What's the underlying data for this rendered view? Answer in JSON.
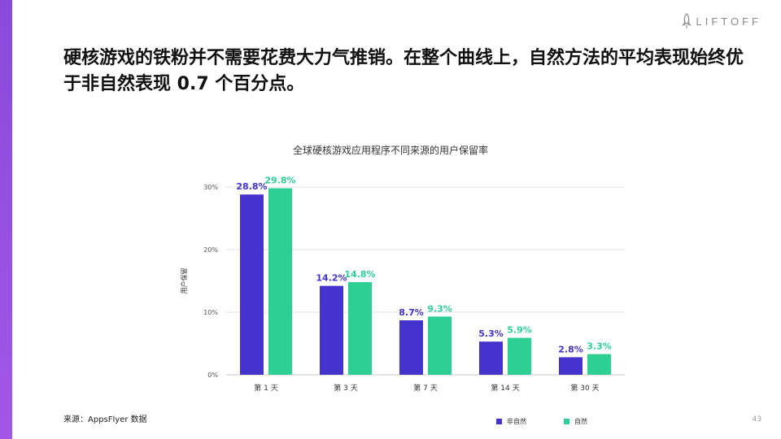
{
  "brand": {
    "logo_text": "LIFTOFF"
  },
  "headline": "硬核游戏的铁粉并不需要花费大力气推销。在整个曲线上，自然方法的平均表现始终优于非自然表现 0.7 个百分点。",
  "source": "来源：AppsFlyer 数据",
  "page_number": "43",
  "colors": {
    "non_organic": "#4433cc",
    "organic": "#2ecf95",
    "accent": "#9b51e0"
  },
  "chart_data": {
    "type": "bar",
    "title": "全球硬核游戏应用程序不同来源的用户保留率",
    "xlabel": "",
    "ylabel": "用户保留",
    "categories": [
      "第 1 天",
      "第 3 天",
      "第 7 天",
      "第 14 天",
      "第 30 天"
    ],
    "series": [
      {
        "name": "非自然",
        "values": [
          28.8,
          14.2,
          8.7,
          5.3,
          2.8
        ],
        "labels": [
          "28.8%",
          "14.2%",
          "8.7%",
          "5.3%",
          "2.8%"
        ]
      },
      {
        "name": "自然",
        "values": [
          29.8,
          14.8,
          9.3,
          5.9,
          3.3
        ],
        "labels": [
          "29.8%",
          "14.8%",
          "9.3%",
          "5.9%",
          "3.3%"
        ]
      }
    ],
    "ylim": [
      0,
      30
    ],
    "yticks": [
      0,
      10,
      20,
      30
    ],
    "ytick_labels": [
      "0%",
      "10%",
      "20%",
      "30%"
    ],
    "grid": true,
    "legend_position": "bottom-right"
  }
}
